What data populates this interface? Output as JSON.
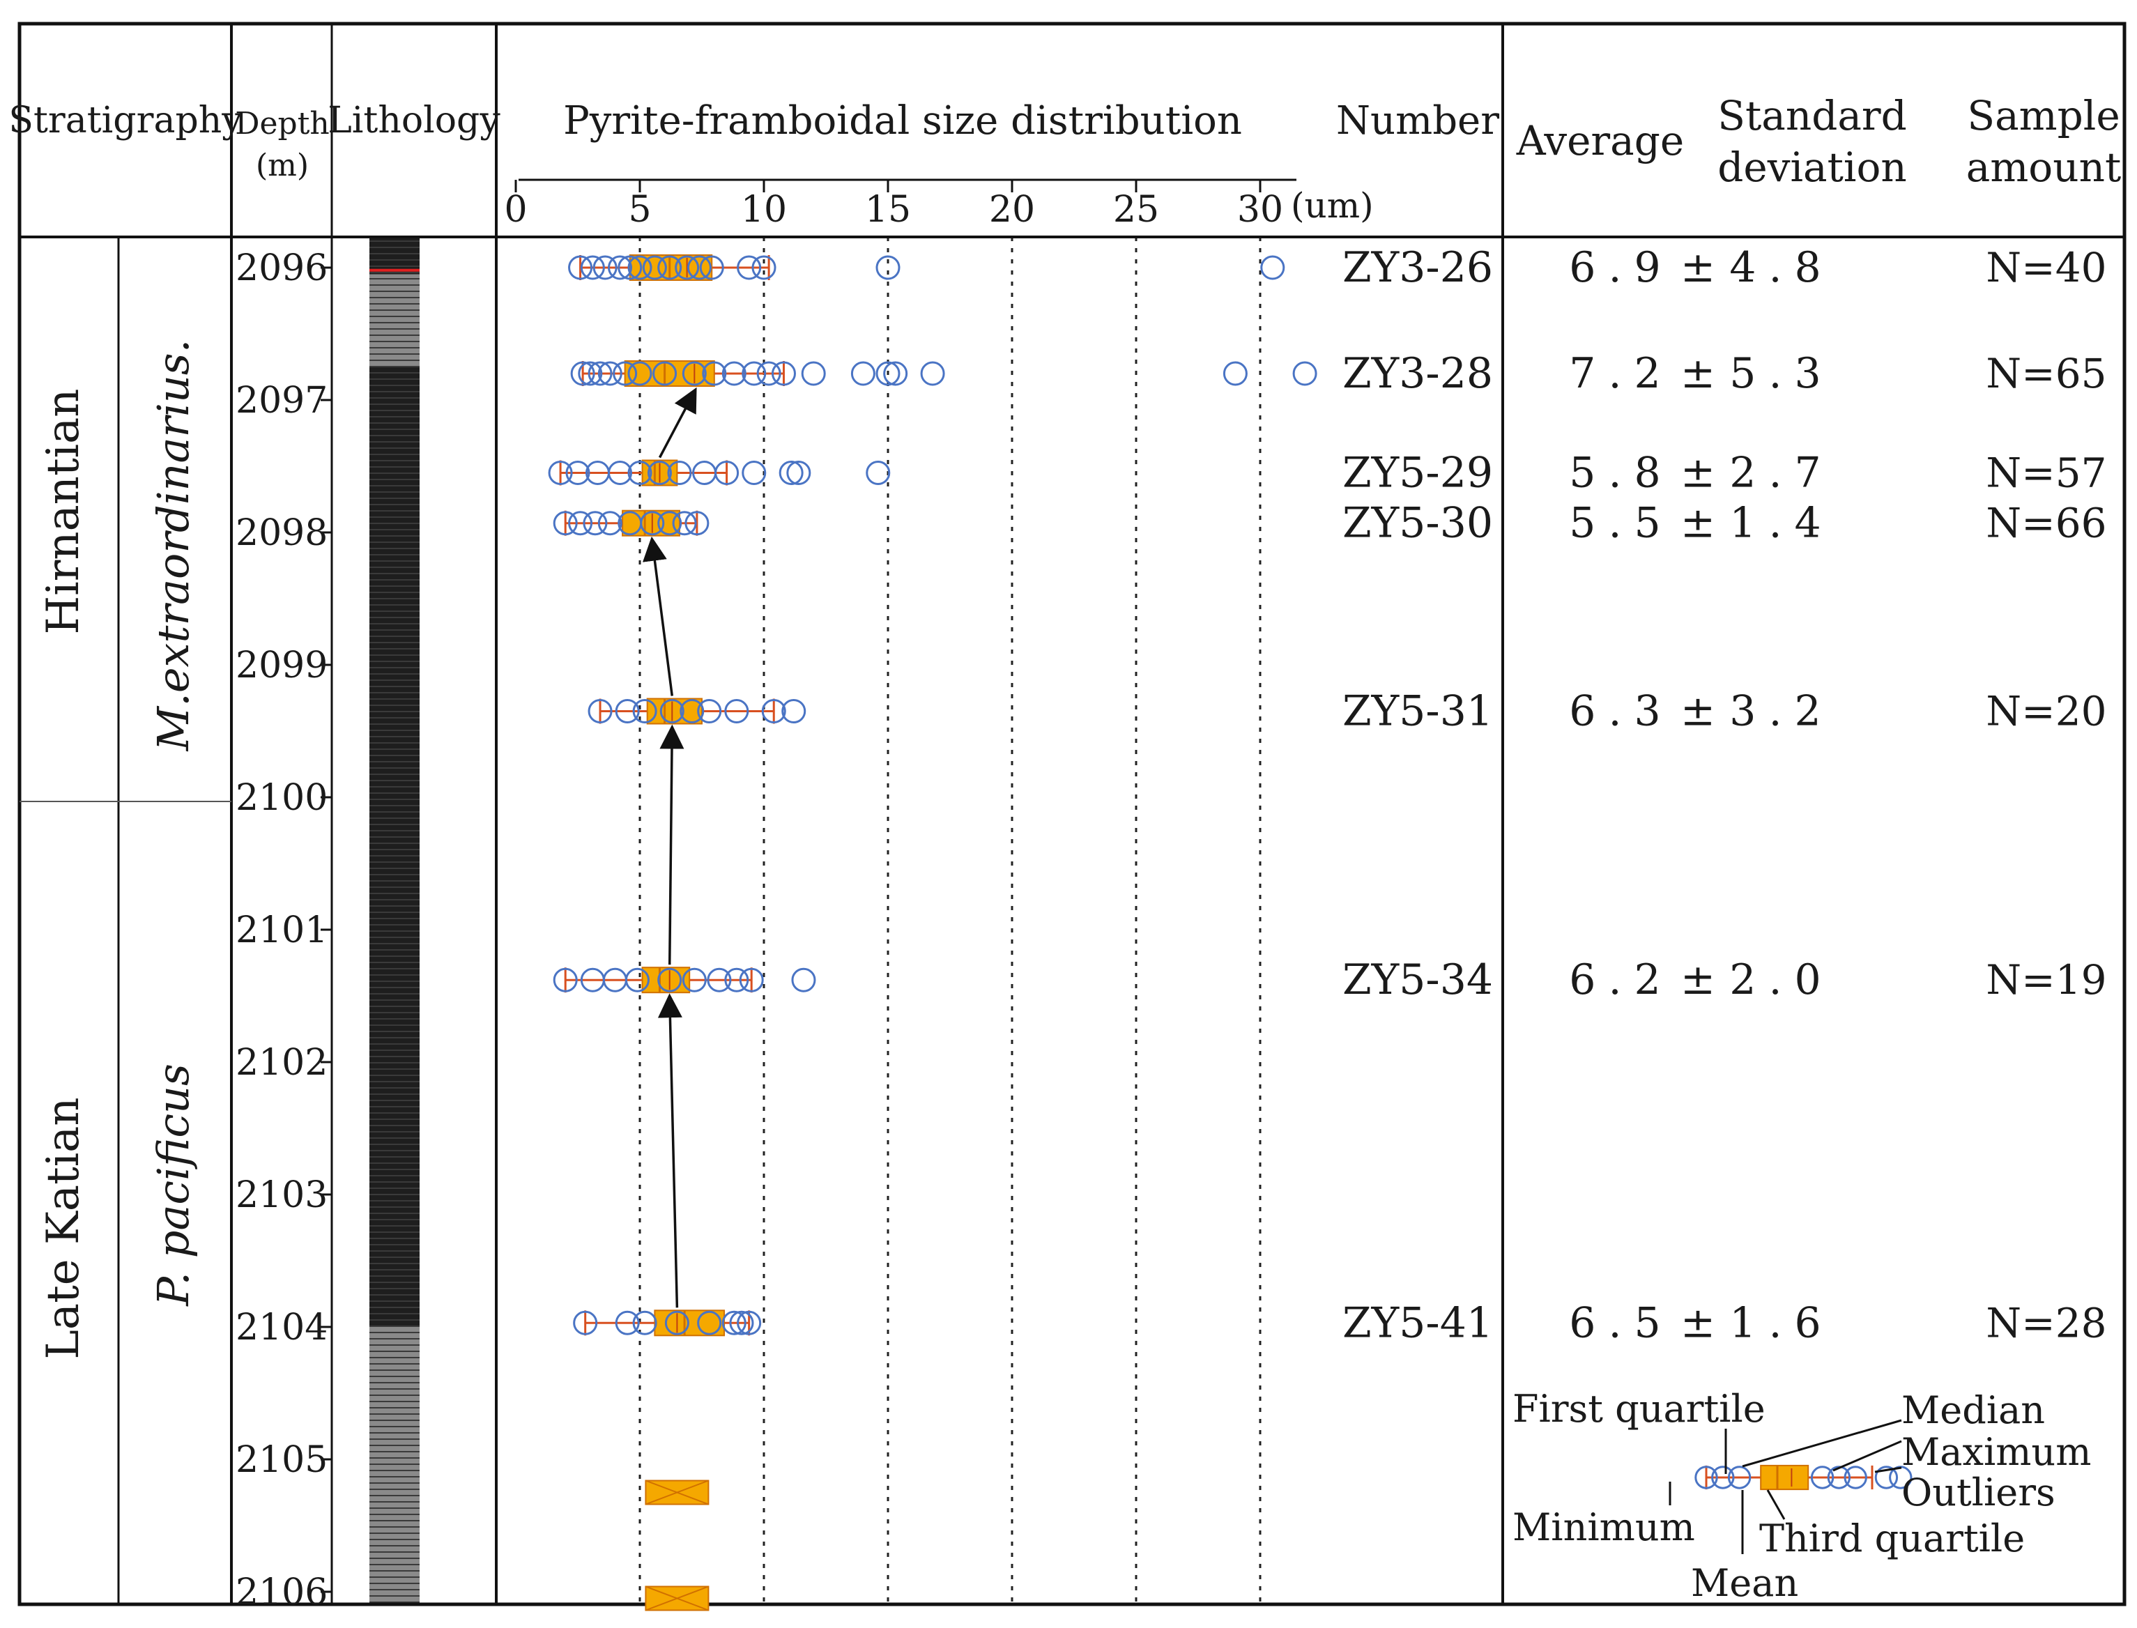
{
  "headers": {
    "stratigraphy": "Stratigraphy",
    "depth_1": "Depth",
    "depth_2": "(m)",
    "lithology": "Lithology",
    "distribution": "Pyrite-framboidal size distribution",
    "axis_unit": "(um)",
    "number": "Number",
    "average": "Average",
    "std_1": "Standard",
    "std_2": "deviation",
    "sample_1": "Sample",
    "sample_2": "amount"
  },
  "stages": [
    {
      "name": "Hirnantian",
      "from_depth": 2095.8,
      "to_depth": 2100
    },
    {
      "name": "Late Katian",
      "from_depth": 2100,
      "to_depth": 2106.3
    }
  ],
  "zones": [
    {
      "name": "M.extraordinarius.",
      "from_depth": 2095.8,
      "to_depth": 2100
    },
    {
      "name": "P. pacificus",
      "from_depth": 2100,
      "to_depth": 2106.3
    }
  ],
  "depth_ticks": [
    "2096",
    "2097",
    "2098",
    "2099",
    "2100",
    "2101",
    "2102",
    "2103",
    "2104",
    "2105",
    "2106"
  ],
  "pm_sign": "±",
  "samples": [
    {
      "id": "ZY3-26",
      "average": "6.9",
      "std": "4.8",
      "n": "N=40"
    },
    {
      "id": "ZY3-28",
      "average": "7.2",
      "std": "5.3",
      "n": "N=65"
    },
    {
      "id": "ZY5-29",
      "average": "5.8",
      "std": "2.7",
      "n": "N=57"
    },
    {
      "id": "ZY5-30",
      "average": "5.5",
      "std": "1.4",
      "n": "N=66"
    },
    {
      "id": "ZY5-31",
      "average": "6.3",
      "std": "3.2",
      "n": "N=20"
    },
    {
      "id": "ZY5-34",
      "average": "6.2",
      "std": "2.0",
      "n": "N=19"
    },
    {
      "id": "ZY5-41",
      "average": "6.5",
      "std": "1.6",
      "n": "N=28"
    }
  ],
  "legend": {
    "first_quartile": "First quartile",
    "median": "Median",
    "maximum": "Maximum",
    "outliers": "Outliers",
    "minimum": "Minimum",
    "third_quartile": "Third quartile",
    "mean": "Mean"
  },
  "colors": {
    "box_fill": "#f5a800",
    "box_edge": "#d07000",
    "whisker": "#d85020",
    "point": "#4a74c4",
    "lithology_dark": "#1e1e1e",
    "lithology_light": "#8a8a8a"
  },
  "chart_data": {
    "type": "box",
    "title": "Pyrite-framboidal size distribution",
    "xlabel": "(um)",
    "ylabel": "Depth (m)",
    "xlim": [
      0,
      30
    ],
    "x_ticks": [
      "0",
      "5",
      "10",
      "15",
      "20",
      "25",
      "30"
    ],
    "x_gridlines": [
      5,
      10,
      15,
      20,
      25,
      30
    ],
    "ylim": [
      2095.8,
      2106.3
    ],
    "series": [
      {
        "sample": "ZY3-26",
        "depth": 2096.0,
        "min": 2.6,
        "q1": 4.6,
        "median": 6.2,
        "mean": 6.9,
        "q3": 7.9,
        "max": 10.2,
        "points": [
          2.6,
          3.1,
          3.6,
          4.2,
          4.6,
          5.0,
          5.6,
          6.2,
          6.9,
          7.4,
          7.9,
          9.4,
          10.0,
          15.0,
          30.5
        ]
      },
      {
        "sample": "ZY3-28",
        "depth": 2096.8,
        "min": 2.7,
        "q1": 4.4,
        "median": 6.0,
        "mean": 7.2,
        "q3": 8.0,
        "max": 10.8,
        "points": [
          2.7,
          3.0,
          3.4,
          3.8,
          4.4,
          5.0,
          6.0,
          7.2,
          8.0,
          8.8,
          9.6,
          10.2,
          10.8,
          12.0,
          14.0,
          15.0,
          15.3,
          16.8,
          29.0,
          31.8
        ]
      },
      {
        "sample": "ZY5-29",
        "depth": 2097.55,
        "min": 1.8,
        "q1": 5.1,
        "median": 5.6,
        "mean": 5.8,
        "q3": 6.5,
        "max": 8.5,
        "points": [
          1.8,
          2.5,
          3.3,
          4.2,
          5.0,
          5.8,
          6.6,
          7.6,
          8.5,
          9.6,
          11.1,
          11.4,
          14.6
        ]
      },
      {
        "sample": "ZY5-30",
        "depth": 2097.93,
        "min": 2.0,
        "q1": 4.3,
        "median": 5.2,
        "mean": 5.5,
        "q3": 6.6,
        "max": 7.3,
        "points": [
          2.0,
          2.6,
          3.2,
          3.8,
          4.6,
          5.5,
          6.2,
          6.8,
          7.3
        ]
      },
      {
        "sample": "ZY5-31",
        "depth": 2099.35,
        "min": 3.4,
        "q1": 5.3,
        "median": 6.0,
        "mean": 6.3,
        "q3": 7.5,
        "max": 10.4,
        "points": [
          3.4,
          4.5,
          5.2,
          6.3,
          7.1,
          7.8,
          8.9,
          10.4,
          11.2
        ]
      },
      {
        "sample": "ZY5-34",
        "depth": 2101.38,
        "min": 2.0,
        "q1": 5.1,
        "median": 5.8,
        "mean": 6.2,
        "q3": 7.0,
        "max": 9.5,
        "points": [
          2.0,
          3.1,
          4.0,
          4.9,
          6.2,
          7.2,
          8.2,
          8.9,
          9.5,
          11.6
        ]
      },
      {
        "sample": "ZY5-41",
        "depth": 2103.97,
        "min": 2.8,
        "q1": 5.6,
        "median": 6.8,
        "mean": 6.5,
        "q3": 8.4,
        "max": 9.4,
        "points": [
          2.8,
          4.5,
          5.2,
          6.5,
          7.8,
          8.8,
          9.1,
          9.4
        ]
      }
    ],
    "arrows": [
      {
        "from_sample": "ZY5-41",
        "to_sample": "ZY5-34"
      },
      {
        "from_sample": "ZY5-34",
        "to_sample": "ZY5-31"
      },
      {
        "from_sample": "ZY5-31",
        "to_sample": "ZY5-30"
      },
      {
        "from_sample": "ZY5-29",
        "to_sample": "ZY3-28"
      }
    ],
    "no_data_markers": [
      {
        "depth": 2105.25,
        "x": 6.5
      },
      {
        "depth": 2106.05,
        "x": 6.5
      }
    ]
  }
}
